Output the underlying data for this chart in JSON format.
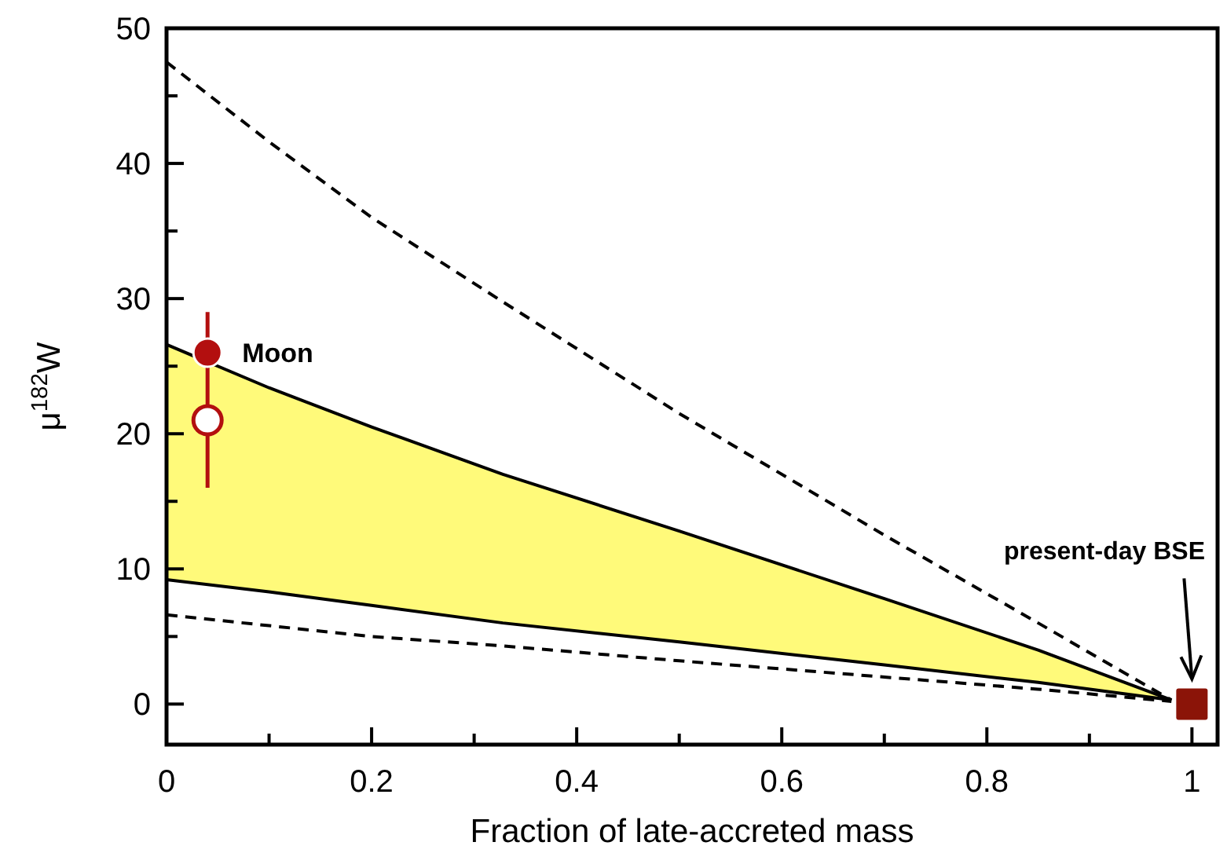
{
  "chart_data": {
    "type": "line",
    "xlabel": "Fraction of late-accreted mass",
    "ylabel": "μ$^{182}$W",
    "xlim": [
      0,
      1.025
    ],
    "ylim": [
      -3,
      50
    ],
    "xticks": [
      0,
      {
        "value": 0.1,
        "label": null
      },
      0.2,
      {
        "value": 0.3,
        "label": null
      },
      0.4,
      {
        "value": 0.5,
        "label": null
      },
      0.6,
      {
        "value": 0.7,
        "label": null
      },
      0.8,
      {
        "value": 0.9,
        "label": null
      },
      1
    ],
    "yticks": [
      0,
      {
        "value": 5,
        "label": null
      },
      10,
      {
        "value": 15,
        "label": null
      },
      20,
      {
        "value": 25,
        "label": null
      },
      30,
      {
        "value": 35,
        "label": null
      },
      40,
      {
        "value": 45,
        "label": null
      },
      50
    ],
    "series": [
      {
        "color": "#000000",
        "line_style": "solid",
        "x": [
          0,
          0.1,
          0.2,
          0.328,
          0.5,
          0.7,
          0.85,
          0.98
        ],
        "values": [
          26.6,
          23.4,
          20.5,
          17.0,
          12.8,
          7.8,
          4.0,
          0.3
        ],
        "upper": [
          26.6,
          23.4,
          20.5,
          17.0,
          12.8,
          7.8,
          4.0,
          0.3
        ],
        "lower": [
          9.2,
          8.3,
          7.3,
          6.0,
          4.6,
          2.9,
          1.6,
          0.3
        ]
      },
      {
        "color": "#000000",
        "line_style": "solid",
        "x": [
          0,
          0.1,
          0.2,
          0.328,
          0.5,
          0.7,
          0.85,
          0.98
        ],
        "values": [
          9.2,
          8.3,
          7.3,
          6.0,
          4.6,
          2.9,
          1.6,
          0.3
        ]
      },
      {
        "color": "#000000",
        "line_style": "dashed",
        "x": [
          0,
          0.1,
          0.2,
          0.323,
          0.5,
          0.7,
          0.85,
          0.98
        ],
        "values": [
          47.5,
          41.6,
          36.0,
          30.0,
          21.5,
          12.5,
          6.0,
          0.3
        ]
      },
      {
        "color": "#000000",
        "line_style": "dashed",
        "x": [
          0,
          0.1,
          0.2,
          0.328,
          0.5,
          0.7,
          0.85,
          0.98
        ],
        "values": [
          6.6,
          5.8,
          5.0,
          4.3,
          3.2,
          2.0,
          1.1,
          0.2
        ]
      },
      {
        "type": "scatter",
        "marker": "circle",
        "color": "#b30f0f",
        "x": [
          0.04
        ],
        "values": [
          26
        ],
        "errors": [
          [
            16,
            29
          ]
        ]
      },
      {
        "type": "scatter",
        "marker": "circle",
        "color": "#ffffff",
        "x": [
          0.04
        ],
        "values": [
          21
        ]
      },
      {
        "type": "scatter",
        "marker": "square",
        "color": "#8b1408",
        "x": [
          1
        ],
        "values": [
          0
        ]
      }
    ],
    "annotations": [
      {
        "text": "Moon",
        "x": 0.04,
        "y": 26
      },
      "present-day BSE"
    ]
  }
}
